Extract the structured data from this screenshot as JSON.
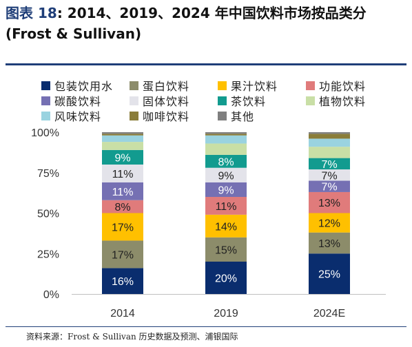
{
  "header": {
    "label": "图表",
    "number": "18",
    "text": ": 2014、2019、2024 年中国饮料市场按品类分 (Frost & Sullivan)"
  },
  "source": "资料来源：Frost & Sullivan 历史数据及预测、浦银国际",
  "chart_data": {
    "type": "bar",
    "stacked": true,
    "categories": [
      "2014",
      "2019",
      "2024E"
    ],
    "yticks": [
      "0%",
      "25%",
      "50%",
      "75%",
      "100%"
    ],
    "ylim": [
      0,
      100
    ],
    "legend_position": "top",
    "series": [
      {
        "name": "包装饮用水",
        "color": "#0a2d6e",
        "values": [
          16,
          20,
          25
        ],
        "labels": [
          "16%",
          "20%",
          "25%"
        ],
        "label_color": "#ffffff"
      },
      {
        "name": "蛋白饮料",
        "color": "#8c8c6a",
        "values": [
          17,
          15,
          13
        ],
        "labels": [
          "17%",
          "15%",
          "13%"
        ],
        "label_color": "#222222"
      },
      {
        "name": "果汁饮料",
        "color": "#ffc000",
        "values": [
          17,
          14,
          12
        ],
        "labels": [
          "17%",
          "14%",
          "12%"
        ],
        "label_color": "#222222"
      },
      {
        "name": "功能饮料",
        "color": "#e07b7b",
        "values": [
          8,
          11,
          13
        ],
        "labels": [
          "8%",
          "11%",
          "13%"
        ],
        "label_color": "#222222"
      },
      {
        "name": "碳酸饮料",
        "color": "#7570b3",
        "values": [
          11,
          9,
          7
        ],
        "labels": [
          "11%",
          "9%",
          "7%"
        ],
        "label_color": "#ffffff"
      },
      {
        "name": "固体饮料",
        "color": "#e3e3ea",
        "values": [
          11,
          9,
          7
        ],
        "labels": [
          "11%",
          "9%",
          "7%"
        ],
        "label_color": "#222222"
      },
      {
        "name": "茶饮料",
        "color": "#129b8f",
        "values": [
          9,
          8,
          7
        ],
        "labels": [
          "9%",
          "8%",
          "7%"
        ],
        "label_color": "#ffffff"
      },
      {
        "name": "植物饮料",
        "color": "#c9dfa6",
        "values": [
          5,
          7,
          7
        ],
        "labels": [
          "",
          "",
          ""
        ],
        "label_color": "#222222"
      },
      {
        "name": "风味饮料",
        "color": "#9ad3e0",
        "values": [
          4,
          5,
          5
        ],
        "labels": [
          "",
          "",
          ""
        ],
        "label_color": "#222222"
      },
      {
        "name": "咖啡饮料",
        "color": "#8a7d3a",
        "values": [
          1,
          1,
          3
        ],
        "labels": [
          "",
          "",
          ""
        ],
        "label_color": "#222222"
      },
      {
        "name": "其他",
        "color": "#7f7f7f",
        "values": [
          1,
          1,
          1
        ],
        "labels": [
          "",
          "",
          ""
        ],
        "label_color": "#222222"
      }
    ]
  }
}
